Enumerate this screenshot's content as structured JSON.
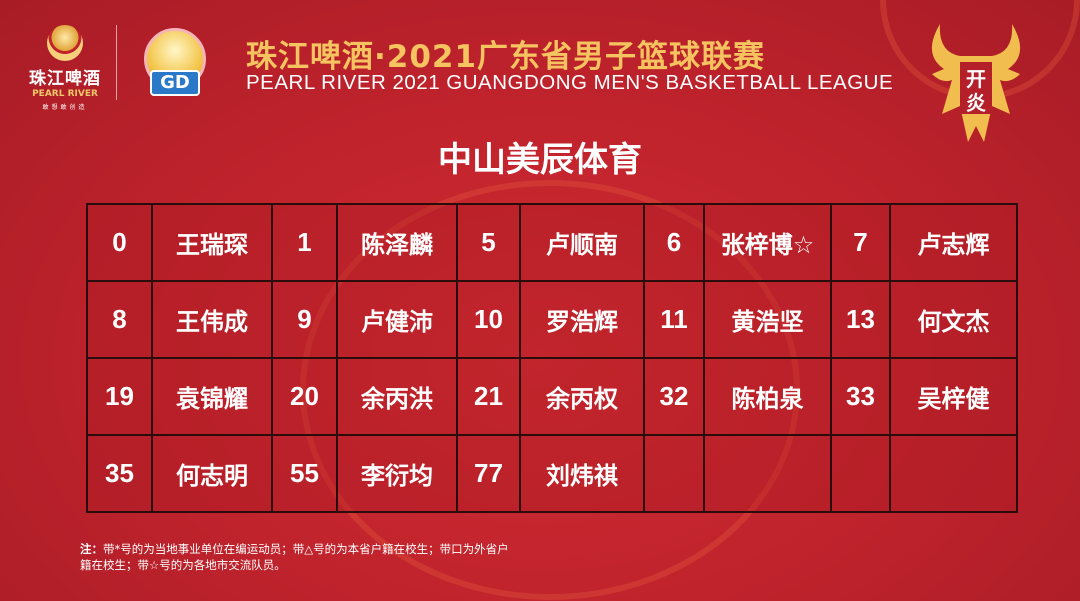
{
  "brand": {
    "name_cn": "珠江啤酒",
    "name_en": "PEARL RIVER",
    "tagline": "敢想敢创造"
  },
  "league_logo": {
    "text": "GD"
  },
  "header": {
    "title_cn": "珠江啤酒·2021广东省男子篮球联赛",
    "title_en": "PEARL RIVER 2021 GUANGDONG MEN'S BASKETBALL LEAGUE"
  },
  "mascot_logo": {
    "text": "开炎"
  },
  "team_name": "中山美辰体育",
  "roster": [
    [
      {
        "no": "0",
        "name": "王瑞琛"
      },
      {
        "no": "1",
        "name": "陈泽麟"
      },
      {
        "no": "5",
        "name": "卢顺南"
      },
      {
        "no": "6",
        "name": "张梓博☆"
      },
      {
        "no": "7",
        "name": "卢志辉"
      }
    ],
    [
      {
        "no": "8",
        "name": "王伟成"
      },
      {
        "no": "9",
        "name": "卢健沛"
      },
      {
        "no": "10",
        "name": "罗浩辉"
      },
      {
        "no": "11",
        "name": "黄浩坚"
      },
      {
        "no": "13",
        "name": "何文杰"
      }
    ],
    [
      {
        "no": "19",
        "name": "袁锦耀"
      },
      {
        "no": "20",
        "name": "余丙洪"
      },
      {
        "no": "21",
        "name": "余丙权"
      },
      {
        "no": "32",
        "name": "陈柏泉"
      },
      {
        "no": "33",
        "name": "吴梓健"
      }
    ],
    [
      {
        "no": "35",
        "name": "何志明"
      },
      {
        "no": "55",
        "name": "李衍均"
      },
      {
        "no": "77",
        "name": "刘炜祺"
      },
      {
        "no": "",
        "name": ""
      },
      {
        "no": "",
        "name": ""
      }
    ]
  ],
  "note": {
    "label": "注：",
    "text": "带*号的为当地事业单位在编运动员；带△号的为本省户籍在校生；带口为外省户籍在校生；带☆号的为各地市交流队员。"
  },
  "colors": {
    "background": "#c4252e",
    "title_gold": "#f5c460",
    "grid": "#2a0c0c"
  }
}
